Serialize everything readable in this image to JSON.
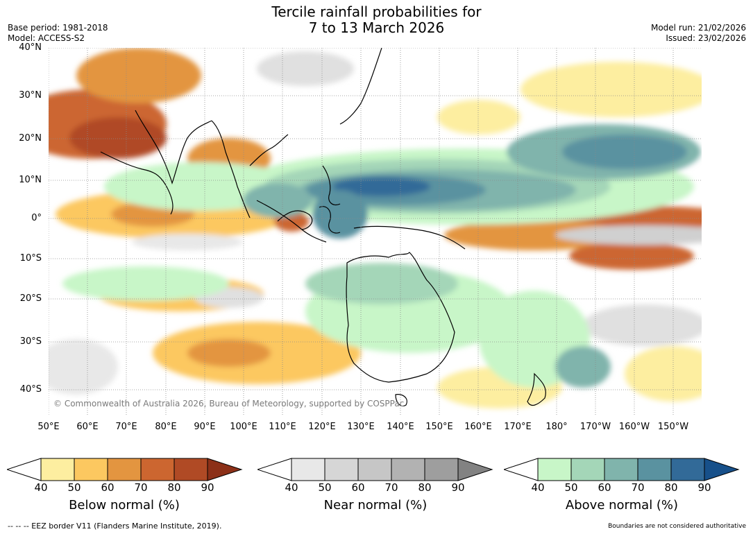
{
  "header": {
    "title_line1": "Tercile rainfall probabilities for",
    "title_line2": "7 to 13 March 2026",
    "base_period": "Base period: 1981-2018",
    "model": "Model: ACCESS-S2",
    "model_run": "Model run: 21/02/2026",
    "issued": "Issued: 23/02/2026"
  },
  "map": {
    "lat_labels": [
      "40°N",
      "30°N",
      "20°N",
      "10°N",
      "0°",
      "10°S",
      "20°S",
      "30°S",
      "40°S"
    ],
    "lon_labels": [
      "50°E",
      "60°E",
      "70°E",
      "80°E",
      "90°E",
      "100°E",
      "110°E",
      "120°E",
      "130°E",
      "140°E",
      "150°E",
      "160°E",
      "170°E",
      "180°",
      "170°W",
      "160°W",
      "150°W"
    ],
    "credit": "© Commonwealth of Australia 2026, Bureau of Meteorology, supported by COSPPac",
    "ocean_color": "#ffffff",
    "coast_color": "#000000"
  },
  "colorbars": {
    "below": {
      "title": "Below normal (%)",
      "ticks": [
        "40",
        "50",
        "60",
        "70",
        "80",
        "90"
      ],
      "colors": [
        "#fdeea0",
        "#fcc860",
        "#e39540",
        "#cc6630",
        "#b04a25",
        "#8c3018"
      ]
    },
    "near": {
      "title": "Near normal (%)",
      "ticks": [
        "40",
        "50",
        "60",
        "70",
        "80",
        "90"
      ],
      "colors": [
        "#e8e8e8",
        "#d6d6d6",
        "#c6c6c6",
        "#b2b2b2",
        "#9e9e9e",
        "#828282"
      ]
    },
    "above": {
      "title": "Above normal (%)",
      "ticks": [
        "40",
        "50",
        "60",
        "70",
        "80",
        "90"
      ],
      "colors": [
        "#c8f6c8",
        "#a4d6b8",
        "#80b4ac",
        "#5a92a0",
        "#326a98",
        "#17508a"
      ]
    }
  },
  "footer": {
    "eez_note": "--  --  -- EEZ border V11 (Flanders Marine Institute, 2019).",
    "boundaries_note": "Boundaries are not considered authoritative"
  }
}
